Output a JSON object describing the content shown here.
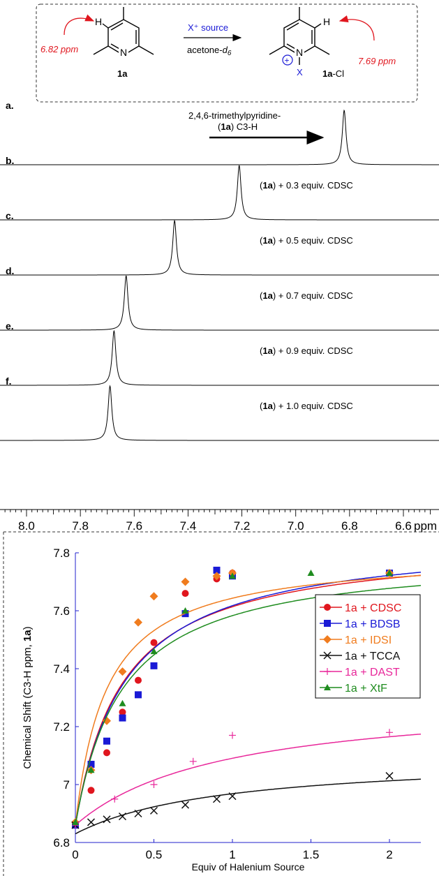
{
  "scheme": {
    "left_shift": "6.82 ppm",
    "right_shift": "7.69 ppm",
    "reagent": "X⁺ source",
    "solvent_main": "acetone-",
    "solvent_sub": "d",
    "solvent_subsub": "6",
    "left_label": "1a",
    "right_label_bold": "1a",
    "right_label_rest": "-Cl",
    "h_atom": "H",
    "n_atom": "N",
    "x_atom": "X",
    "charge": "+"
  },
  "nmr": {
    "x_unit": "ppm",
    "x_ticks": [
      "8.0",
      "7.8",
      "7.6",
      "7.4",
      "7.2",
      "7.0",
      "6.8",
      "6.6"
    ],
    "x_tick_values": [
      8.0,
      7.8,
      7.6,
      7.4,
      7.2,
      7.0,
      6.8,
      6.6
    ],
    "first_annotation_line1": "2,4,6-trimethylpyridine-",
    "first_annotation_line2_bold": "1a",
    "first_annotation_line2_rest": " C3-H",
    "panels": [
      {
        "letter": "a.",
        "peak_ppm": 6.82,
        "label_open": "",
        "label_bold": "",
        "label_rest": ""
      },
      {
        "letter": "b.",
        "peak_ppm": 7.21,
        "label_open": "(",
        "label_bold": "1a",
        "label_rest": ") + 0.3 equiv. CDSC"
      },
      {
        "letter": "c.",
        "peak_ppm": 7.45,
        "label_open": "(",
        "label_bold": "1a",
        "label_rest": ") + 0.5 equiv. CDSC"
      },
      {
        "letter": "d.",
        "peak_ppm": 7.63,
        "label_open": "(",
        "label_bold": "1a",
        "label_rest": ") + 0.7 equiv. CDSC"
      },
      {
        "letter": "e.",
        "peak_ppm": 7.675,
        "label_open": "(",
        "label_bold": "1a",
        "label_rest": ") + 0.9 equiv. CDSC"
      },
      {
        "letter": "f.",
        "peak_ppm": 7.69,
        "label_open": "(",
        "label_bold": "1a",
        "label_rest": ") + 1.0 equiv. CDSC"
      }
    ]
  },
  "chart_data": {
    "type": "scatter",
    "xlabel": "Equiv of Halenium Source",
    "ylabel_prefix": "Chemical Shift (C3-H ppm, ",
    "ylabel_bold": "1a",
    "ylabel_suffix": ")",
    "xlim": [
      0,
      2.2
    ],
    "ylim": [
      6.8,
      7.8
    ],
    "x_ticks": [
      0,
      0.5,
      1,
      1.5,
      2
    ],
    "x_tick_labels": [
      "0",
      "0.5",
      "1",
      "1.5",
      "2"
    ],
    "y_ticks": [
      6.8,
      7.0,
      7.2,
      7.4,
      7.6,
      7.8
    ],
    "y_tick_labels": [
      "6.8",
      "7",
      "7.2",
      "7.4",
      "7.6",
      "7.8"
    ],
    "legend_position": "right",
    "series": [
      {
        "name": "1a + CDSC",
        "color": "#e0161e",
        "marker": "circle",
        "x": [
          0,
          0.1,
          0.2,
          0.3,
          0.4,
          0.5,
          0.7,
          0.9,
          1.0,
          2.0
        ],
        "y": [
          6.86,
          6.98,
          7.11,
          7.25,
          7.36,
          7.49,
          7.66,
          7.71,
          7.73,
          7.73
        ],
        "fit": {
          "y0": 6.86,
          "delta": 0.98,
          "k": 0.3
        }
      },
      {
        "name": "1a + BDSB",
        "color": "#1a1ad6",
        "marker": "square",
        "x": [
          0,
          0.1,
          0.2,
          0.3,
          0.4,
          0.5,
          0.7,
          0.9,
          1.0,
          2.0
        ],
        "y": [
          6.86,
          7.07,
          7.15,
          7.23,
          7.31,
          7.41,
          7.59,
          7.74,
          7.72,
          7.73
        ],
        "fit": {
          "y0": 6.86,
          "delta": 1.0,
          "k": 0.32
        }
      },
      {
        "name": "1a + IDSI",
        "color": "#f07c1e",
        "marker": "diamond",
        "x": [
          0,
          0.1,
          0.2,
          0.3,
          0.4,
          0.5,
          0.7,
          0.9,
          1.0,
          2.0
        ],
        "y": [
          6.87,
          7.05,
          7.22,
          7.39,
          7.56,
          7.65,
          7.7,
          7.72,
          7.73,
          7.73
        ],
        "fit": {
          "y0": 6.86,
          "delta": 0.94,
          "k": 0.2
        }
      },
      {
        "name": "1a + TCCA",
        "color": "#111111",
        "marker": "x",
        "x": [
          0,
          0.1,
          0.2,
          0.3,
          0.4,
          0.5,
          0.7,
          0.9,
          1.0,
          2.0
        ],
        "y": [
          6.86,
          6.87,
          6.88,
          6.89,
          6.9,
          6.91,
          6.93,
          6.95,
          6.96,
          7.03
        ],
        "fit": {
          "y0": 6.83,
          "delta": 0.27,
          "k": 0.95
        }
      },
      {
        "name": "1a + DAST",
        "color": "#e8279a",
        "marker": "plus",
        "x": [
          0,
          0.25,
          0.5,
          0.75,
          1.0,
          2.0
        ],
        "y": [
          6.86,
          6.95,
          7.0,
          7.08,
          7.17,
          7.18
        ],
        "fit": {
          "y0": 6.86,
          "delta": 0.45,
          "k": 0.95
        }
      },
      {
        "name": "1a + XtF",
        "color": "#1f8c1f",
        "marker": "triangle",
        "x": [
          0,
          0.1,
          0.3,
          0.5,
          0.7,
          1.0,
          1.5,
          2.0
        ],
        "y": [
          6.87,
          7.05,
          7.28,
          7.46,
          7.6,
          7.72,
          7.73,
          7.73
        ],
        "fit": {
          "y0": 6.86,
          "delta": 0.94,
          "k": 0.3
        }
      }
    ]
  }
}
